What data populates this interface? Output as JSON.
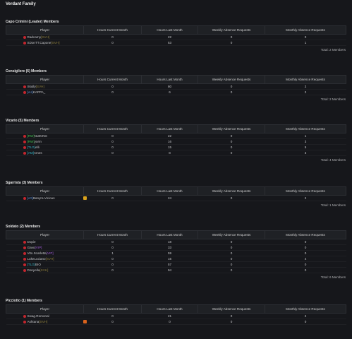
{
  "title": "Verdant Family",
  "sections": [
    {
      "title": "Capo Crimini (Leader) Members",
      "columns": [
        "Player",
        "Hours Current Month",
        "Hours Last Month",
        "Weekly Absence Requests",
        "Monthly Absence Requests"
      ],
      "rows": [
        {
          "name": "Radcarny",
          "suffix": "[SVH]",
          "suffix_color": "#8c7d3c",
          "values": [
            0,
            22,
            0,
            0
          ]
        },
        {
          "name": "SDonTT.Capone",
          "suffix": "[SVH]",
          "suffix_color": "#8c7d3c",
          "values": [
            0,
            53,
            0,
            1
          ]
        }
      ],
      "total": "Total: 2 Members"
    },
    {
      "title": "Consigliere (6) Members",
      "columns": [
        "Player",
        "Hours Current Month",
        "Hours Last Month",
        "Weekly Absence Requests",
        "Monthly Absence Requests"
      ],
      "rows": [
        {
          "name": "Skully",
          "suffix": "[SVH]",
          "suffix_color": "#8c7d3c",
          "values": [
            0,
            80,
            0,
            2
          ]
        },
        {
          "tag": "[vU]",
          "tag_color": "#5b8fd6",
          "name": "KAPPA_",
          "values": [
            0,
            6,
            0,
            2
          ]
        }
      ],
      "total": "Total: 2 Members"
    },
    {
      "title": "Vicario (5) Members",
      "columns": [
        "Player",
        "Hours Current Month",
        "Hours Last Month",
        "Weekly Absence Requests",
        "Monthly Absence Requests"
      ],
      "rows": [
        {
          "tag": "[RW]",
          "tag_color": "#3fbf4f",
          "name": "NutKING",
          "values": [
            0,
            22,
            0,
            1
          ]
        },
        {
          "tag": "[RW]",
          "tag_color": "#3fbf4f",
          "name": "yorm",
          "values": [
            0,
            16,
            0,
            3
          ]
        },
        {
          "tag": "[TLG]",
          "tag_color": "#36b7c9",
          "name": "elli",
          "values": [
            0,
            15,
            0,
            5
          ]
        },
        {
          "tag": "[AM]",
          "tag_color": "#36b7c9",
          "name": "Ames",
          "values": [
            0,
            8,
            0,
            3
          ]
        }
      ],
      "total": "Total: 4 Members"
    },
    {
      "title": "Sgarrista (3) Members",
      "columns": [
        "Player",
        "Hours Current Month",
        "Hours Last Month",
        "Weekly Absence Requests",
        "Monthly Absence Requests"
      ],
      "rows": [
        {
          "tag": "[vG]",
          "tag_color": "#5b8fd6",
          "name": "Banyra Vicious",
          "icon_color": "#d9a21c",
          "values": [
            0,
            24,
            0,
            2
          ]
        }
      ],
      "total": "Total: 1 Members"
    },
    {
      "title": "Soldato (2) Members",
      "columns": [
        "Player",
        "Hours Current Month",
        "Hours Last Month",
        "Weekly Absence Requests",
        "Monthly Absence Requests"
      ],
      "rows": [
        {
          "name": "Dopie",
          "values": [
            0,
            18,
            0,
            0
          ]
        },
        {
          "name": "Gavo",
          "suffix": "[VIP]",
          "suffix_color": "#a05cd6",
          "values": [
            0,
            33,
            0,
            0
          ]
        },
        {
          "name": "Vito.Scarletta",
          "suffix": "[VIP]",
          "suffix_color": "#a05cd6",
          "values": [
            1,
            59,
            0,
            0
          ]
        },
        {
          "name": "LukeLuciano",
          "suffix": "[SVH]",
          "suffix_color": "#8c7d3c",
          "values": [
            0,
            15,
            0,
            4
          ]
        },
        {
          "tag": "[TLG]",
          "tag_color": "#36b7c9",
          "name": "BIO",
          "values": [
            0,
            57,
            0,
            0
          ]
        },
        {
          "name": "Donyella",
          "suffix": "[SVH]",
          "suffix_color": "#8c7d3c",
          "values": [
            0,
            94,
            0,
            0
          ]
        }
      ],
      "total": "Total: 6 Members"
    },
    {
      "title": "Picciotto (1) Members",
      "columns": [
        "Player",
        "Hours Current Month",
        "Hours Last Month",
        "Weekly Absence Requests",
        "Monthly Absence Requests"
      ],
      "rows": [
        {
          "name": "Swag.Romonal",
          "values": [
            0,
            21,
            0,
            2
          ]
        },
        {
          "name": "Ashtana",
          "suffix": "[SVH]",
          "suffix_color": "#8c7d3c",
          "icon_color": "#d9621c",
          "values": [
            0,
            0,
            0,
            0
          ]
        }
      ]
    }
  ]
}
